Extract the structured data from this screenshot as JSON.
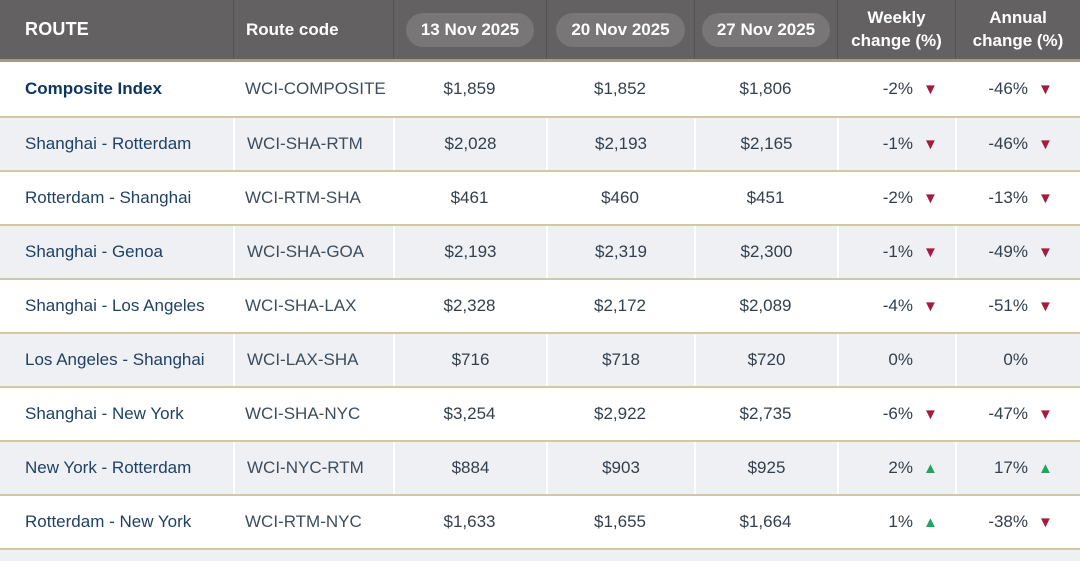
{
  "colors": {
    "header_bg": "#636161",
    "pill_bg": "#787676",
    "gold_rule": "#a99e72",
    "row_separator": "#d2c9a3",
    "row_alt_bg": "#eef0f3",
    "route_navy": "#1e4166",
    "down_arrow_red": "#a41b3d",
    "up_arrow_green": "#22a45a"
  },
  "chart_data": {
    "type": "table",
    "columns": [
      "ROUTE",
      "Route code",
      "13 Nov 2025",
      "20 Nov 2025",
      "27 Nov 2025",
      "Weekly change (%)",
      "Annual change (%)"
    ],
    "rows": [
      {
        "route": "Composite Index",
        "code": "WCI-COMPOSITE",
        "prices": [
          "$1,859",
          "$1,852",
          "$1,806"
        ],
        "weekly": {
          "value": "-2%",
          "arrow": "▼",
          "dir": "down"
        },
        "annual": {
          "value": "-46%",
          "arrow": "▼",
          "dir": "down"
        }
      },
      {
        "route": "Shanghai - Rotterdam",
        "code": "WCI-SHA-RTM",
        "prices": [
          "$2,028",
          "$2,193",
          "$2,165"
        ],
        "weekly": {
          "value": "-1%",
          "arrow": "▼",
          "dir": "down"
        },
        "annual": {
          "value": "-46%",
          "arrow": "▼",
          "dir": "down"
        }
      },
      {
        "route": "Rotterdam - Shanghai",
        "code": "WCI-RTM-SHA",
        "prices": [
          "$461",
          "$460",
          "$451"
        ],
        "weekly": {
          "value": "-2%",
          "arrow": "▼",
          "dir": "down"
        },
        "annual": {
          "value": "-13%",
          "arrow": "▼",
          "dir": "down"
        }
      },
      {
        "route": "Shanghai - Genoa",
        "code": "WCI-SHA-GOA",
        "prices": [
          "$2,193",
          "$2,319",
          "$2,300"
        ],
        "weekly": {
          "value": "-1%",
          "arrow": "▼",
          "dir": "down"
        },
        "annual": {
          "value": "-49%",
          "arrow": "▼",
          "dir": "down"
        }
      },
      {
        "route": "Shanghai - Los Angeles",
        "code": "WCI-SHA-LAX",
        "prices": [
          "$2,328",
          "$2,172",
          "$2,089"
        ],
        "weekly": {
          "value": "-4%",
          "arrow": "▼",
          "dir": "down"
        },
        "annual": {
          "value": "-51%",
          "arrow": "▼",
          "dir": "down"
        }
      },
      {
        "route": "Los Angeles - Shanghai",
        "code": "WCI-LAX-SHA",
        "prices": [
          "$716",
          "$718",
          "$720"
        ],
        "weekly": {
          "value": "0%",
          "arrow": "",
          "dir": "none"
        },
        "annual": {
          "value": "0%",
          "arrow": "",
          "dir": "none"
        }
      },
      {
        "route": "Shanghai - New York",
        "code": "WCI-SHA-NYC",
        "prices": [
          "$3,254",
          "$2,922",
          "$2,735"
        ],
        "weekly": {
          "value": "-6%",
          "arrow": "▼",
          "dir": "down"
        },
        "annual": {
          "value": "-47%",
          "arrow": "▼",
          "dir": "down"
        }
      },
      {
        "route": "New York - Rotterdam",
        "code": "WCI-NYC-RTM",
        "prices": [
          "$884",
          "$903",
          "$925"
        ],
        "weekly": {
          "value": "2%",
          "arrow": "▲",
          "dir": "up"
        },
        "annual": {
          "value": "17%",
          "arrow": "▲",
          "dir": "up"
        }
      },
      {
        "route": "Rotterdam - New York",
        "code": "WCI-RTM-NYC",
        "prices": [
          "$1,633",
          "$1,655",
          "$1,664"
        ],
        "weekly": {
          "value": "1%",
          "arrow": "▲",
          "dir": "up"
        },
        "annual": {
          "value": "-38%",
          "arrow": "▼",
          "dir": "down"
        }
      }
    ]
  }
}
